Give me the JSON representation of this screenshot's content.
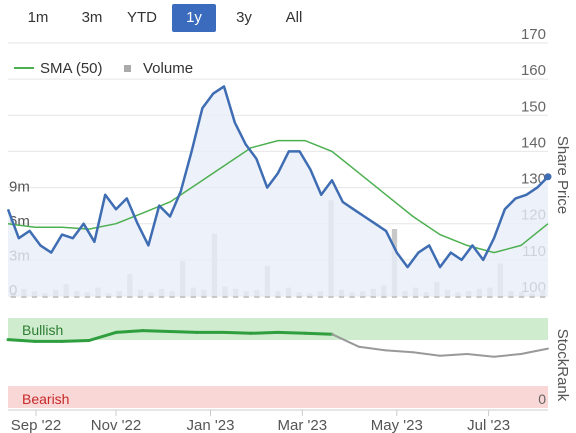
{
  "range_buttons": [
    "1m",
    "3m",
    "YTD",
    "1y",
    "3y",
    "All"
  ],
  "active_range": "1y",
  "colors": {
    "price": "#3f6db3",
    "sma": "#4caf50",
    "volume": "#c8c8c8",
    "bullish_bg": "#cfeccf",
    "bearish_bg": "#f9d7d7",
    "stockrank_green": "#2e9e3e",
    "stockrank_grey": "#999999"
  },
  "chart_data": {
    "type": "line",
    "legend": [
      "SMA (50)",
      "Volume"
    ],
    "legend_position": "top-left",
    "x_ticks": [
      "Sep '22",
      "Nov '22",
      "Jan '23",
      "Mar '23",
      "May '23",
      "Jul '23"
    ],
    "y_right": {
      "label": "Share Price",
      "ticks": [
        "170",
        "160",
        "150",
        "140",
        "130",
        "120",
        "110",
        "100"
      ],
      "range": [
        100,
        170
      ]
    },
    "y_volume": {
      "ticks": [
        "9m",
        "6m",
        "3m",
        "0"
      ],
      "range": [
        0,
        12
      ]
    },
    "series": [
      {
        "name": "SMA (50)",
        "x": [
          0,
          5,
          10,
          15,
          20,
          25,
          30,
          35,
          40,
          45,
          50,
          55,
          60,
          65,
          70,
          75,
          80,
          85,
          90,
          95,
          100
        ],
        "values": [
          120,
          119,
          119,
          118.5,
          120,
          123,
          126,
          131,
          136,
          141,
          143,
          143,
          140,
          134,
          128,
          122,
          117,
          114,
          112,
          114,
          120
        ]
      },
      {
        "name": "Price",
        "x": [
          0,
          2,
          4,
          6,
          8,
          10,
          12,
          14,
          16,
          18,
          20,
          22,
          24,
          26,
          28,
          30,
          32,
          34,
          36,
          38,
          40,
          42,
          44,
          46,
          48,
          50,
          52,
          54,
          56,
          58,
          60,
          62,
          64,
          66,
          68,
          70,
          72,
          74,
          76,
          78,
          80,
          82,
          84,
          86,
          88,
          90,
          92,
          94,
          96,
          98,
          100
        ],
        "values": [
          124,
          116,
          118,
          114,
          112,
          117,
          116,
          120,
          115,
          128,
          124,
          127,
          120,
          114,
          125,
          122,
          129,
          140,
          152,
          156,
          158,
          148,
          142,
          138,
          130,
          134,
          140,
          140,
          135,
          128,
          132,
          126,
          124,
          122,
          120,
          118,
          112,
          108,
          112,
          114,
          108,
          112,
          110,
          114,
          110,
          116,
          124,
          127,
          128,
          130,
          133
        ]
      },
      {
        "name": "Volume",
        "values_m": [
          0.5,
          0.8,
          0.6,
          0.4,
          0.7,
          1.2,
          0.6,
          0.5,
          0.9,
          0.4,
          0.6,
          2.1,
          0.7,
          0.5,
          0.8,
          0.6,
          3.2,
          0.9,
          0.7,
          5.6,
          1.0,
          0.8,
          0.6,
          0.7,
          2.8,
          0.6,
          0.9,
          0.5,
          0.4,
          0.6,
          8.5,
          0.7,
          0.5,
          0.6,
          0.8,
          1.1,
          6.0,
          0.6,
          0.9,
          0.5,
          1.4,
          0.7,
          0.5,
          0.6,
          0.8,
          0.9,
          3.0,
          0.6,
          0.5,
          0.4,
          0.7
        ]
      }
    ],
    "stockrank": {
      "label": "StockRank",
      "bullish_label": "Bullish",
      "bearish_label": "Bearish",
      "zero_label": "0",
      "x": [
        0,
        5,
        10,
        15,
        20,
        25,
        30,
        35,
        40,
        45,
        50,
        55,
        60,
        65,
        70,
        75,
        80,
        85,
        90,
        95,
        100
      ],
      "values": [
        76,
        74,
        74,
        75,
        84,
        86,
        85,
        84,
        84,
        83,
        84,
        83,
        82,
        68,
        64,
        62,
        58,
        60,
        57,
        60,
        66
      ]
    }
  }
}
